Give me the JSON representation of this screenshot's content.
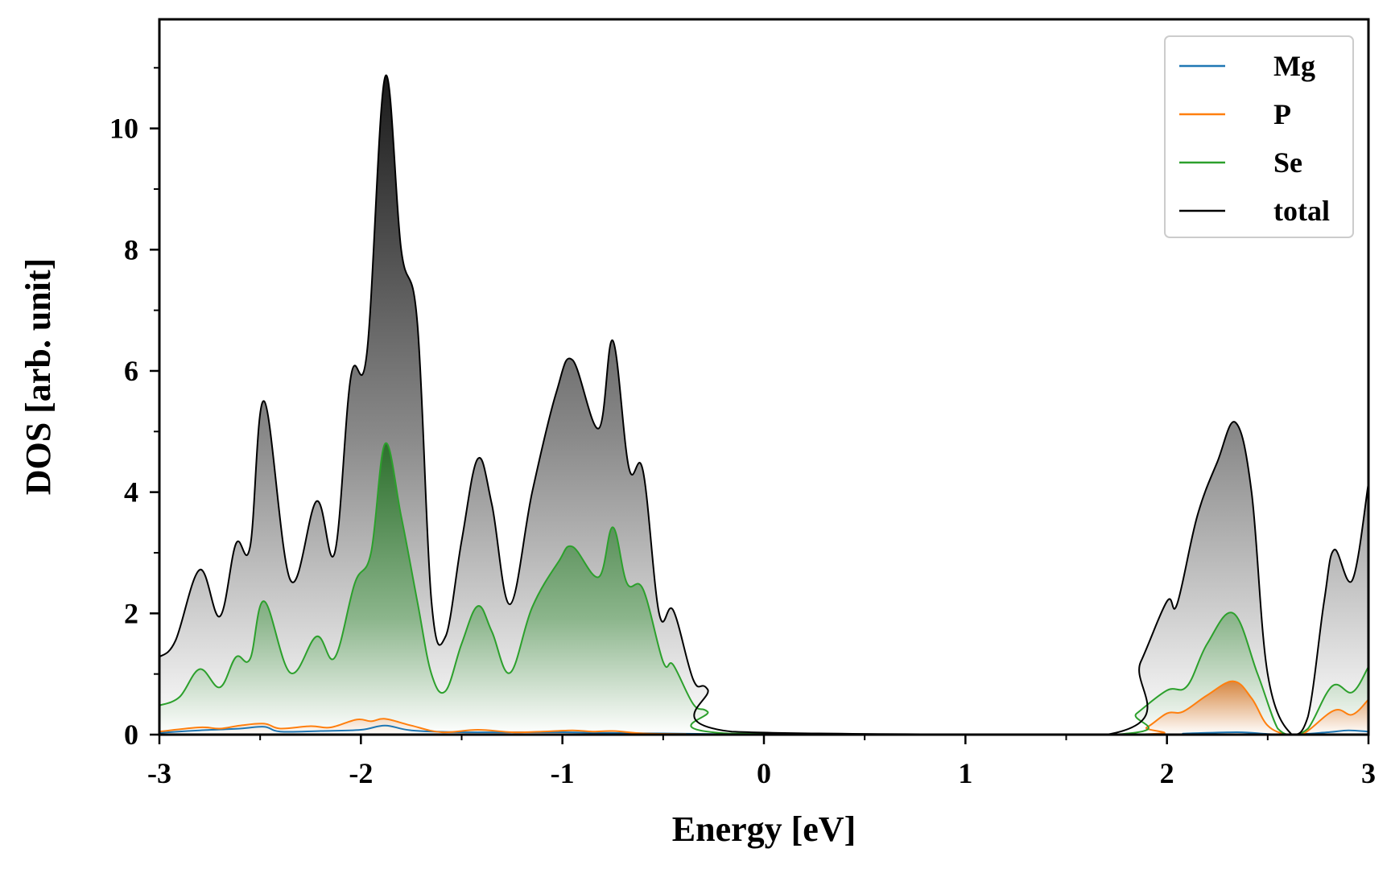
{
  "chart_data": {
    "type": "line",
    "title": "",
    "xlabel": "Energy [eV]",
    "ylabel": "DOS [arb. unit]",
    "xlim": [
      -3,
      3
    ],
    "ylim": [
      0,
      11.8
    ],
    "xticks": [
      -3,
      -2,
      -1,
      0,
      1,
      2,
      3
    ],
    "xtick_labels": [
      "-3",
      "-2",
      "-1",
      "0",
      "1",
      "2",
      "3"
    ],
    "yticks": [
      0,
      2,
      4,
      6,
      8,
      10
    ],
    "ytick_labels": [
      "0",
      "2",
      "4",
      "6",
      "8",
      "10"
    ],
    "legend_position": "top-right",
    "grid": false,
    "series": [
      {
        "name": "Mg",
        "color": "#1f77b4",
        "filled": false,
        "points": [
          [
            -3,
            0.03
          ],
          [
            -2.8,
            0.07
          ],
          [
            -2.6,
            0.1
          ],
          [
            -2.48,
            0.13
          ],
          [
            -2.4,
            0.05
          ],
          [
            -2.2,
            0.06
          ],
          [
            -2.0,
            0.08
          ],
          [
            -1.88,
            0.15
          ],
          [
            -1.75,
            0.07
          ],
          [
            -1.5,
            0.04
          ],
          [
            -1.2,
            0.04
          ],
          [
            -1.0,
            0.04
          ],
          [
            -0.8,
            0.03
          ],
          [
            -0.5,
            0.02
          ],
          [
            -0.25,
            0.01
          ],
          [
            -0.15,
            0.0
          ],
          [
            1.85,
            0.0
          ],
          [
            2.1,
            0.02
          ],
          [
            2.35,
            0.04
          ],
          [
            2.5,
            0.01
          ],
          [
            2.62,
            0.0
          ],
          [
            2.8,
            0.04
          ],
          [
            2.9,
            0.07
          ],
          [
            3.0,
            0.05
          ]
        ]
      },
      {
        "name": "P",
        "color": "#ff7f0e",
        "filled": true,
        "points": [
          [
            -3,
            0.05
          ],
          [
            -2.8,
            0.12
          ],
          [
            -2.7,
            0.1
          ],
          [
            -2.6,
            0.15
          ],
          [
            -2.48,
            0.18
          ],
          [
            -2.4,
            0.1
          ],
          [
            -2.25,
            0.14
          ],
          [
            -2.15,
            0.12
          ],
          [
            -2.02,
            0.25
          ],
          [
            -1.95,
            0.22
          ],
          [
            -1.88,
            0.26
          ],
          [
            -1.75,
            0.15
          ],
          [
            -1.6,
            0.04
          ],
          [
            -1.42,
            0.08
          ],
          [
            -1.25,
            0.04
          ],
          [
            -1.1,
            0.05
          ],
          [
            -0.95,
            0.07
          ],
          [
            -0.85,
            0.05
          ],
          [
            -0.75,
            0.06
          ],
          [
            -0.6,
            0.02
          ],
          [
            -0.4,
            0.01
          ],
          [
            -0.2,
            0.0
          ],
          [
            1.8,
            0.0
          ],
          [
            1.9,
            0.12
          ],
          [
            2.0,
            0.35
          ],
          [
            2.08,
            0.38
          ],
          [
            2.2,
            0.65
          ],
          [
            2.33,
            0.88
          ],
          [
            2.42,
            0.6
          ],
          [
            2.5,
            0.15
          ],
          [
            2.6,
            0.0
          ],
          [
            2.68,
            0.02
          ],
          [
            2.83,
            0.4
          ],
          [
            2.92,
            0.33
          ],
          [
            3.0,
            0.58
          ]
        ]
      },
      {
        "name": "Se",
        "color": "#2ca02c",
        "filled": true,
        "points": [
          [
            -3,
            0.48
          ],
          [
            -2.9,
            0.62
          ],
          [
            -2.8,
            1.08
          ],
          [
            -2.7,
            0.78
          ],
          [
            -2.62,
            1.28
          ],
          [
            -2.55,
            1.25
          ],
          [
            -2.48,
            2.2
          ],
          [
            -2.35,
            1.02
          ],
          [
            -2.22,
            1.62
          ],
          [
            -2.13,
            1.27
          ],
          [
            -2.03,
            2.5
          ],
          [
            -1.95,
            3.0
          ],
          [
            -1.88,
            4.8
          ],
          [
            -1.8,
            3.6
          ],
          [
            -1.72,
            2.2
          ],
          [
            -1.65,
            1.0
          ],
          [
            -1.58,
            0.72
          ],
          [
            -1.5,
            1.5
          ],
          [
            -1.42,
            2.12
          ],
          [
            -1.35,
            1.7
          ],
          [
            -1.26,
            1.02
          ],
          [
            -1.15,
            2.1
          ],
          [
            -1.02,
            2.85
          ],
          [
            -0.95,
            3.1
          ],
          [
            -0.82,
            2.6
          ],
          [
            -0.75,
            3.42
          ],
          [
            -0.68,
            2.5
          ],
          [
            -0.6,
            2.4
          ],
          [
            -0.5,
            1.2
          ],
          [
            -0.45,
            1.15
          ],
          [
            -0.35,
            0.5
          ],
          [
            -0.28,
            0.38
          ],
          [
            -0.18,
            0.02
          ],
          [
            1.72,
            0.0
          ],
          [
            1.85,
            0.35
          ],
          [
            2.0,
            0.73
          ],
          [
            2.1,
            0.8
          ],
          [
            2.2,
            1.5
          ],
          [
            2.33,
            2.0
          ],
          [
            2.45,
            1.0
          ],
          [
            2.55,
            0.1
          ],
          [
            2.62,
            0.0
          ],
          [
            2.7,
            0.1
          ],
          [
            2.82,
            0.8
          ],
          [
            2.92,
            0.7
          ],
          [
            3.0,
            1.12
          ]
        ]
      },
      {
        "name": "total",
        "color": "#000000",
        "filled": true,
        "points": [
          [
            -3,
            1.28
          ],
          [
            -2.92,
            1.55
          ],
          [
            -2.8,
            2.72
          ],
          [
            -2.7,
            1.95
          ],
          [
            -2.62,
            3.15
          ],
          [
            -2.55,
            3.1
          ],
          [
            -2.48,
            5.5
          ],
          [
            -2.35,
            2.55
          ],
          [
            -2.22,
            3.85
          ],
          [
            -2.13,
            3.0
          ],
          [
            -2.05,
            5.9
          ],
          [
            -1.97,
            6.3
          ],
          [
            -1.88,
            10.85
          ],
          [
            -1.8,
            8.0
          ],
          [
            -1.72,
            6.8
          ],
          [
            -1.65,
            2.2
          ],
          [
            -1.58,
            1.62
          ],
          [
            -1.5,
            3.2
          ],
          [
            -1.42,
            4.55
          ],
          [
            -1.35,
            3.8
          ],
          [
            -1.26,
            2.15
          ],
          [
            -1.15,
            4.0
          ],
          [
            -1.03,
            5.65
          ],
          [
            -0.95,
            6.18
          ],
          [
            -0.82,
            5.05
          ],
          [
            -0.75,
            6.5
          ],
          [
            -0.67,
            4.4
          ],
          [
            -0.6,
            4.35
          ],
          [
            -0.52,
            2.0
          ],
          [
            -0.45,
            2.05
          ],
          [
            -0.35,
            0.9
          ],
          [
            -0.28,
            0.75
          ],
          [
            -0.16,
            0.05
          ],
          [
            1.7,
            0.0
          ],
          [
            1.87,
            1.2
          ],
          [
            2.0,
            2.2
          ],
          [
            2.05,
            2.15
          ],
          [
            2.15,
            3.6
          ],
          [
            2.25,
            4.5
          ],
          [
            2.34,
            5.15
          ],
          [
            2.42,
            4.0
          ],
          [
            2.5,
            1.0
          ],
          [
            2.62,
            0.0
          ],
          [
            2.7,
            0.3
          ],
          [
            2.78,
            2.2
          ],
          [
            2.83,
            3.05
          ],
          [
            2.92,
            2.55
          ],
          [
            3.0,
            4.15
          ]
        ]
      }
    ]
  }
}
